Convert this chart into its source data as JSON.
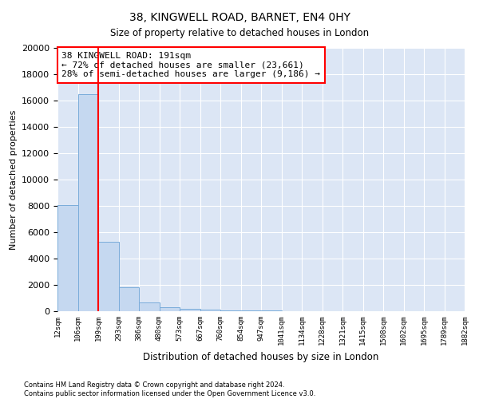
{
  "title1": "38, KINGWELL ROAD, BARNET, EN4 0HY",
  "title2": "Size of property relative to detached houses in London",
  "xlabel": "Distribution of detached houses by size in London",
  "ylabel": "Number of detached properties",
  "bar_color": "#c5d8f0",
  "bar_edge_color": "#7aacda",
  "background_color": "#dce6f5",
  "grid_color": "white",
  "annotation_line_color": "red",
  "annotation_text": "38 KINGWELL ROAD: 191sqm\n← 72% of detached houses are smaller (23,661)\n28% of semi-detached houses are larger (9,186) →",
  "property_line_bin": 2,
  "bin_labels": [
    "12sqm",
    "106sqm",
    "199sqm",
    "293sqm",
    "386sqm",
    "480sqm",
    "573sqm",
    "667sqm",
    "760sqm",
    "854sqm",
    "947sqm",
    "1041sqm",
    "1134sqm",
    "1228sqm",
    "1321sqm",
    "1415sqm",
    "1508sqm",
    "1602sqm",
    "1695sqm",
    "1789sqm",
    "1882sqm"
  ],
  "bar_heights": [
    8050,
    16500,
    5300,
    1800,
    650,
    330,
    200,
    130,
    80,
    55,
    40,
    30,
    22,
    18,
    14,
    10,
    8,
    6,
    4,
    2
  ],
  "ylim": [
    0,
    20000
  ],
  "yticks": [
    0,
    2000,
    4000,
    6000,
    8000,
    10000,
    12000,
    14000,
    16000,
    18000,
    20000
  ],
  "footnote1": "Contains HM Land Registry data © Crown copyright and database right 2024.",
  "footnote2": "Contains public sector information licensed under the Open Government Licence v3.0."
}
